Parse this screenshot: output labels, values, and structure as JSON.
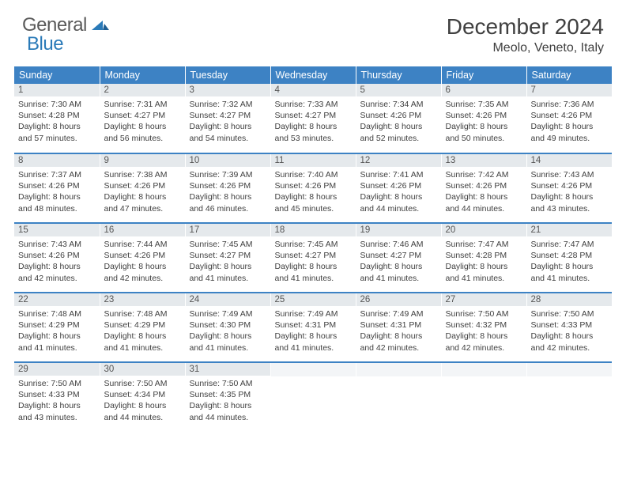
{
  "logo": {
    "part1": "General",
    "part2": "Blue"
  },
  "title": "December 2024",
  "location": "Meolo, Veneto, Italy",
  "colors": {
    "header_bg": "#3d82c4",
    "header_text": "#ffffff",
    "daynum_bg": "#e5e9ec",
    "daynum_text": "#555555",
    "body_text": "#404040",
    "rule": "#3d82c4",
    "logo_gray": "#5a5a5a",
    "logo_blue": "#2a7ab8"
  },
  "weekdays": [
    "Sunday",
    "Monday",
    "Tuesday",
    "Wednesday",
    "Thursday",
    "Friday",
    "Saturday"
  ],
  "weeks": [
    [
      {
        "n": "1",
        "sr": "7:30 AM",
        "ss": "4:28 PM",
        "dl": "8 hours and 57 minutes."
      },
      {
        "n": "2",
        "sr": "7:31 AM",
        "ss": "4:27 PM",
        "dl": "8 hours and 56 minutes."
      },
      {
        "n": "3",
        "sr": "7:32 AM",
        "ss": "4:27 PM",
        "dl": "8 hours and 54 minutes."
      },
      {
        "n": "4",
        "sr": "7:33 AM",
        "ss": "4:27 PM",
        "dl": "8 hours and 53 minutes."
      },
      {
        "n": "5",
        "sr": "7:34 AM",
        "ss": "4:26 PM",
        "dl": "8 hours and 52 minutes."
      },
      {
        "n": "6",
        "sr": "7:35 AM",
        "ss": "4:26 PM",
        "dl": "8 hours and 50 minutes."
      },
      {
        "n": "7",
        "sr": "7:36 AM",
        "ss": "4:26 PM",
        "dl": "8 hours and 49 minutes."
      }
    ],
    [
      {
        "n": "8",
        "sr": "7:37 AM",
        "ss": "4:26 PM",
        "dl": "8 hours and 48 minutes."
      },
      {
        "n": "9",
        "sr": "7:38 AM",
        "ss": "4:26 PM",
        "dl": "8 hours and 47 minutes."
      },
      {
        "n": "10",
        "sr": "7:39 AM",
        "ss": "4:26 PM",
        "dl": "8 hours and 46 minutes."
      },
      {
        "n": "11",
        "sr": "7:40 AM",
        "ss": "4:26 PM",
        "dl": "8 hours and 45 minutes."
      },
      {
        "n": "12",
        "sr": "7:41 AM",
        "ss": "4:26 PM",
        "dl": "8 hours and 44 minutes."
      },
      {
        "n": "13",
        "sr": "7:42 AM",
        "ss": "4:26 PM",
        "dl": "8 hours and 44 minutes."
      },
      {
        "n": "14",
        "sr": "7:43 AM",
        "ss": "4:26 PM",
        "dl": "8 hours and 43 minutes."
      }
    ],
    [
      {
        "n": "15",
        "sr": "7:43 AM",
        "ss": "4:26 PM",
        "dl": "8 hours and 42 minutes."
      },
      {
        "n": "16",
        "sr": "7:44 AM",
        "ss": "4:26 PM",
        "dl": "8 hours and 42 minutes."
      },
      {
        "n": "17",
        "sr": "7:45 AM",
        "ss": "4:27 PM",
        "dl": "8 hours and 41 minutes."
      },
      {
        "n": "18",
        "sr": "7:45 AM",
        "ss": "4:27 PM",
        "dl": "8 hours and 41 minutes."
      },
      {
        "n": "19",
        "sr": "7:46 AM",
        "ss": "4:27 PM",
        "dl": "8 hours and 41 minutes."
      },
      {
        "n": "20",
        "sr": "7:47 AM",
        "ss": "4:28 PM",
        "dl": "8 hours and 41 minutes."
      },
      {
        "n": "21",
        "sr": "7:47 AM",
        "ss": "4:28 PM",
        "dl": "8 hours and 41 minutes."
      }
    ],
    [
      {
        "n": "22",
        "sr": "7:48 AM",
        "ss": "4:29 PM",
        "dl": "8 hours and 41 minutes."
      },
      {
        "n": "23",
        "sr": "7:48 AM",
        "ss": "4:29 PM",
        "dl": "8 hours and 41 minutes."
      },
      {
        "n": "24",
        "sr": "7:49 AM",
        "ss": "4:30 PM",
        "dl": "8 hours and 41 minutes."
      },
      {
        "n": "25",
        "sr": "7:49 AM",
        "ss": "4:31 PM",
        "dl": "8 hours and 41 minutes."
      },
      {
        "n": "26",
        "sr": "7:49 AM",
        "ss": "4:31 PM",
        "dl": "8 hours and 42 minutes."
      },
      {
        "n": "27",
        "sr": "7:50 AM",
        "ss": "4:32 PM",
        "dl": "8 hours and 42 minutes."
      },
      {
        "n": "28",
        "sr": "7:50 AM",
        "ss": "4:33 PM",
        "dl": "8 hours and 42 minutes."
      }
    ],
    [
      {
        "n": "29",
        "sr": "7:50 AM",
        "ss": "4:33 PM",
        "dl": "8 hours and 43 minutes."
      },
      {
        "n": "30",
        "sr": "7:50 AM",
        "ss": "4:34 PM",
        "dl": "8 hours and 44 minutes."
      },
      {
        "n": "31",
        "sr": "7:50 AM",
        "ss": "4:35 PM",
        "dl": "8 hours and 44 minutes."
      },
      {
        "empty": true
      },
      {
        "empty": true
      },
      {
        "empty": true
      },
      {
        "empty": true
      }
    ]
  ],
  "labels": {
    "sunrise": "Sunrise: ",
    "sunset": "Sunset: ",
    "daylight": "Daylight: "
  }
}
